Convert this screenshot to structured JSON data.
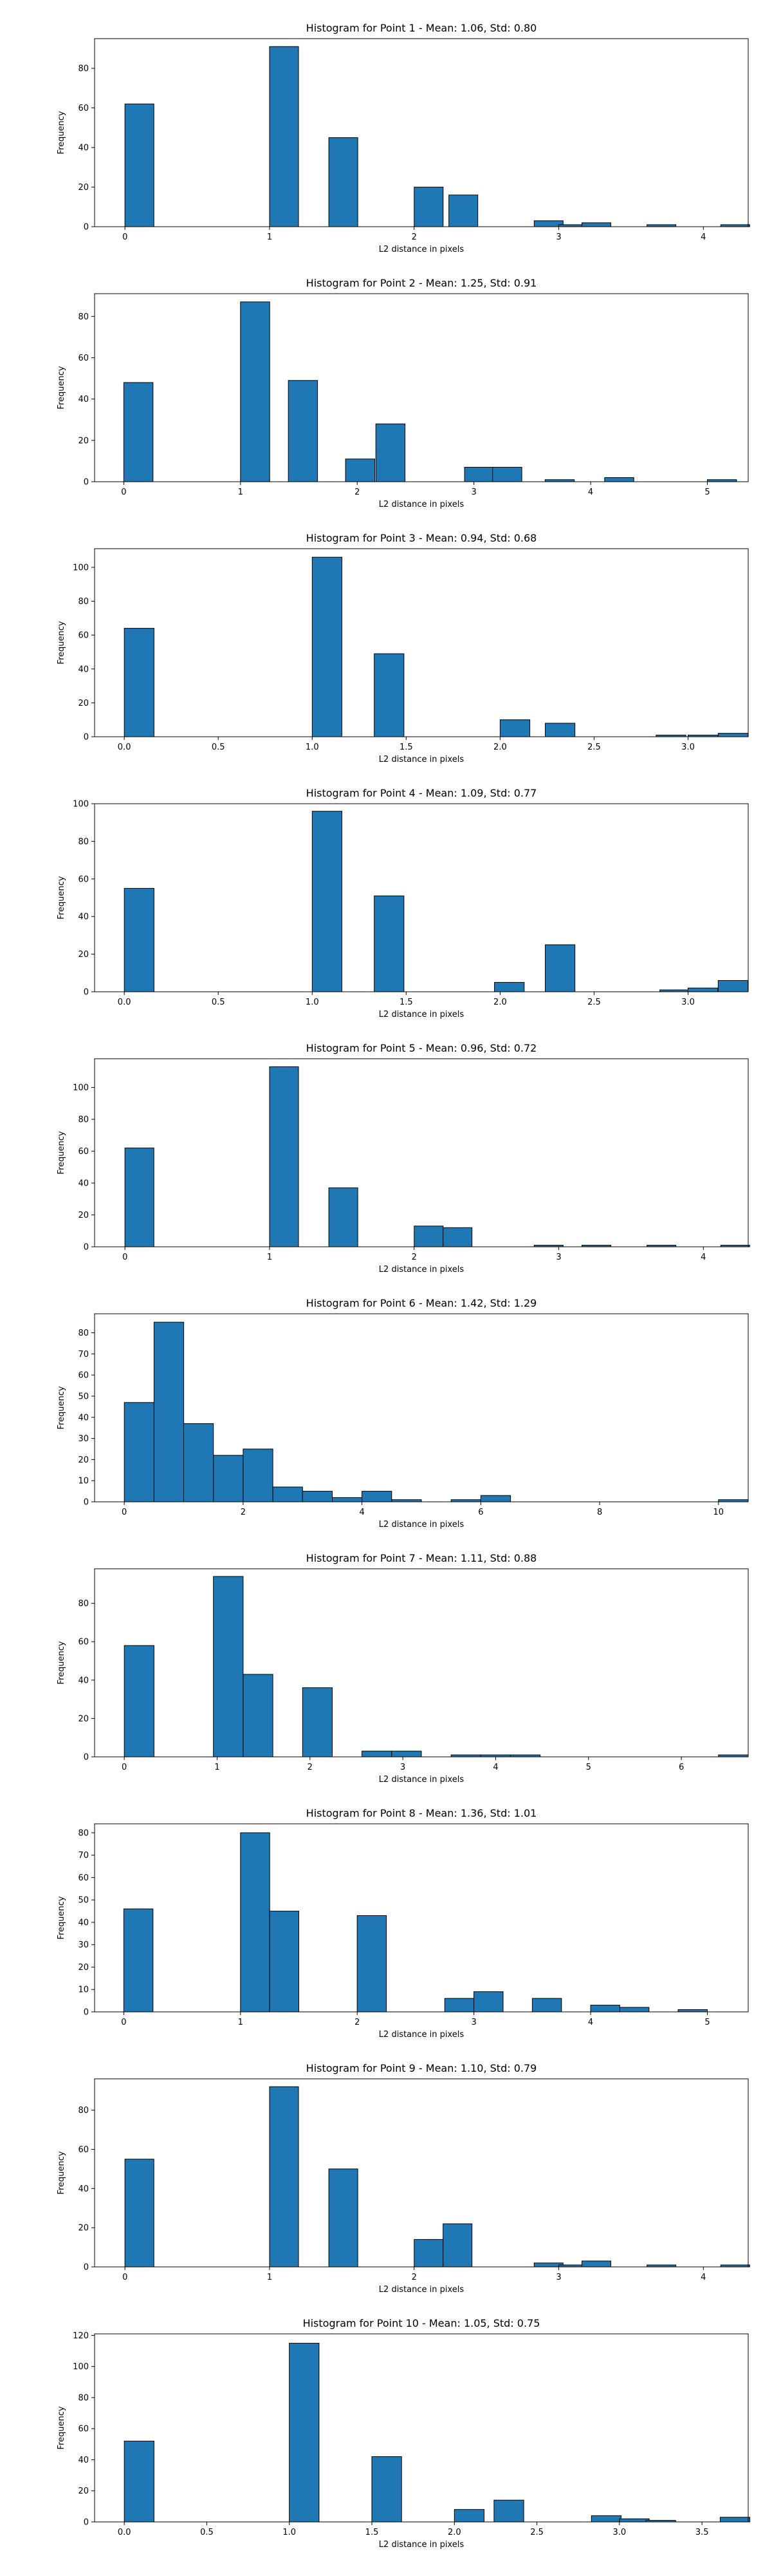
{
  "chart_data": [
    {
      "type": "bar",
      "title": "Histogram for Point 1 - Mean: 1.06, Std: 0.80",
      "xlabel": "L2 distance in pixels",
      "ylabel": "Frequency",
      "xlim": [
        -0.21,
        4.31
      ],
      "ylim": [
        0,
        95
      ],
      "xticks": [
        0,
        1,
        2,
        3,
        4
      ],
      "yticks": [
        0,
        20,
        40,
        60,
        80
      ],
      "bin_width": 0.2,
      "bars": [
        {
          "x": 0.0,
          "value": 62
        },
        {
          "x": 1.0,
          "value": 91
        },
        {
          "x": 1.41,
          "value": 45
        },
        {
          "x": 2.0,
          "value": 20
        },
        {
          "x": 2.24,
          "value": 16
        },
        {
          "x": 2.83,
          "value": 3
        },
        {
          "x": 3.0,
          "value": 1
        },
        {
          "x": 3.16,
          "value": 2
        },
        {
          "x": 3.61,
          "value": 1
        },
        {
          "x": 4.12,
          "value": 1
        }
      ]
    },
    {
      "type": "bar",
      "title": "Histogram for Point 2 - Mean: 1.25, Std: 0.91",
      "xlabel": "L2 distance in pixels",
      "ylabel": "Frequency",
      "xlim": [
        -0.25,
        5.35
      ],
      "ylim": [
        0,
        91
      ],
      "xticks": [
        0,
        1,
        2,
        3,
        4,
        5
      ],
      "yticks": [
        0,
        20,
        40,
        60,
        80
      ],
      "bin_width": 0.25,
      "bars": [
        {
          "x": 0.0,
          "value": 48
        },
        {
          "x": 1.0,
          "value": 87
        },
        {
          "x": 1.41,
          "value": 49
        },
        {
          "x": 1.9,
          "value": 11
        },
        {
          "x": 2.16,
          "value": 28
        },
        {
          "x": 2.92,
          "value": 7
        },
        {
          "x": 3.16,
          "value": 7
        },
        {
          "x": 3.61,
          "value": 1
        },
        {
          "x": 4.12,
          "value": 2
        },
        {
          "x": 5.0,
          "value": 1
        }
      ]
    },
    {
      "type": "bar",
      "title": "Histogram for Point 3 - Mean: 0.94, Std: 0.68",
      "xlabel": "L2 distance in pixels",
      "ylabel": "Frequency",
      "xlim": [
        -0.158,
        3.32
      ],
      "ylim": [
        0,
        111
      ],
      "xticks": [
        0.0,
        0.5,
        1.0,
        1.5,
        2.0,
        2.5,
        3.0
      ],
      "yticks": [
        0,
        20,
        40,
        60,
        80,
        100
      ],
      "tick_format": "0.0",
      "bin_width": 0.158,
      "bars": [
        {
          "x": 0.0,
          "value": 64
        },
        {
          "x": 1.0,
          "value": 106
        },
        {
          "x": 1.33,
          "value": 49
        },
        {
          "x": 2.0,
          "value": 10
        },
        {
          "x": 2.24,
          "value": 8
        },
        {
          "x": 2.83,
          "value": 1
        },
        {
          "x": 3.0,
          "value": 1
        },
        {
          "x": 3.16,
          "value": 2
        }
      ]
    },
    {
      "type": "bar",
      "title": "Histogram for Point 4 - Mean: 1.09, Std: 0.77",
      "xlabel": "L2 distance in pixels",
      "ylabel": "Frequency",
      "xlim": [
        -0.158,
        3.32
      ],
      "ylim": [
        0,
        100
      ],
      "xticks": [
        0.0,
        0.5,
        1.0,
        1.5,
        2.0,
        2.5,
        3.0
      ],
      "yticks": [
        0,
        20,
        40,
        60,
        80,
        100
      ],
      "tick_format": "0.0",
      "bin_width": 0.158,
      "bars": [
        {
          "x": 0.0,
          "value": 55
        },
        {
          "x": 1.0,
          "value": 96
        },
        {
          "x": 1.33,
          "value": 51
        },
        {
          "x": 1.97,
          "value": 5
        },
        {
          "x": 2.24,
          "value": 25
        },
        {
          "x": 2.85,
          "value": 1
        },
        {
          "x": 3.0,
          "value": 2
        },
        {
          "x": 3.16,
          "value": 6
        }
      ]
    },
    {
      "type": "bar",
      "title": "Histogram for Point 5 - Mean: 0.96, Std: 0.72",
      "xlabel": "L2 distance in pixels",
      "ylabel": "Frequency",
      "xlim": [
        -0.21,
        4.31
      ],
      "ylim": [
        0,
        118
      ],
      "xticks": [
        0,
        1,
        2,
        3,
        4
      ],
      "yticks": [
        0,
        20,
        40,
        60,
        80,
        100
      ],
      "bin_width": 0.2,
      "bars": [
        {
          "x": 0.0,
          "value": 62
        },
        {
          "x": 1.0,
          "value": 113
        },
        {
          "x": 1.41,
          "value": 37
        },
        {
          "x": 2.0,
          "value": 13
        },
        {
          "x": 2.2,
          "value": 12
        },
        {
          "x": 2.83,
          "value": 1
        },
        {
          "x": 3.16,
          "value": 1
        },
        {
          "x": 3.61,
          "value": 1
        },
        {
          "x": 4.12,
          "value": 1
        }
      ]
    },
    {
      "type": "bar",
      "title": "Histogram for Point 6 - Mean: 1.42, Std: 1.29",
      "xlabel": "L2 distance in pixels",
      "ylabel": "Frequency",
      "xlim": [
        -0.5,
        10.5
      ],
      "ylim": [
        0,
        89
      ],
      "xticks": [
        0,
        2,
        4,
        6,
        8,
        10
      ],
      "yticks": [
        0,
        10,
        20,
        30,
        40,
        50,
        60,
        70,
        80
      ],
      "bin_width": 0.5,
      "bars": [
        {
          "x": 0.0,
          "value": 47
        },
        {
          "x": 0.5,
          "value": 85
        },
        {
          "x": 1.0,
          "value": 37
        },
        {
          "x": 1.5,
          "value": 22
        },
        {
          "x": 2.0,
          "value": 25
        },
        {
          "x": 2.5,
          "value": 7
        },
        {
          "x": 3.0,
          "value": 5
        },
        {
          "x": 3.5,
          "value": 2
        },
        {
          "x": 4.0,
          "value": 5
        },
        {
          "x": 4.5,
          "value": 1
        },
        {
          "x": 5.5,
          "value": 1
        },
        {
          "x": 6.0,
          "value": 3
        },
        {
          "x": 10.0,
          "value": 1
        }
      ]
    },
    {
      "type": "bar",
      "title": "Histogram for Point 7 - Mean: 1.11, Std: 0.88",
      "xlabel": "L2 distance in pixels",
      "ylabel": "Frequency",
      "xlim": [
        -0.32,
        6.72
      ],
      "ylim": [
        0,
        98
      ],
      "xticks": [
        0,
        1,
        2,
        3,
        4,
        5,
        6
      ],
      "yticks": [
        0,
        20,
        40,
        60,
        80
      ],
      "bin_width": 0.32,
      "bars": [
        {
          "x": 0.0,
          "value": 58
        },
        {
          "x": 0.96,
          "value": 94
        },
        {
          "x": 1.28,
          "value": 43
        },
        {
          "x": 1.92,
          "value": 36
        },
        {
          "x": 2.56,
          "value": 3
        },
        {
          "x": 2.88,
          "value": 3
        },
        {
          "x": 3.52,
          "value": 1
        },
        {
          "x": 3.84,
          "value": 1
        },
        {
          "x": 4.16,
          "value": 1
        },
        {
          "x": 6.4,
          "value": 1
        }
      ]
    },
    {
      "type": "bar",
      "title": "Histogram for Point 8 - Mean: 1.36, Std: 1.01",
      "xlabel": "L2 distance in pixels",
      "ylabel": "Frequency",
      "xlim": [
        -0.25,
        5.35
      ],
      "ylim": [
        0,
        84
      ],
      "xticks": [
        0,
        1,
        2,
        3,
        4,
        5
      ],
      "yticks": [
        0,
        10,
        20,
        30,
        40,
        50,
        60,
        70,
        80
      ],
      "bin_width": 0.25,
      "bars": [
        {
          "x": 0.0,
          "value": 46
        },
        {
          "x": 1.0,
          "value": 80
        },
        {
          "x": 1.25,
          "value": 45
        },
        {
          "x": 2.0,
          "value": 43
        },
        {
          "x": 2.75,
          "value": 6
        },
        {
          "x": 3.0,
          "value": 9
        },
        {
          "x": 3.5,
          "value": 6
        },
        {
          "x": 4.0,
          "value": 3
        },
        {
          "x": 4.25,
          "value": 2
        },
        {
          "x": 4.75,
          "value": 1
        }
      ]
    },
    {
      "type": "bar",
      "title": "Histogram for Point 9 - Mean: 1.10, Std: 0.79",
      "xlabel": "L2 distance in pixels",
      "ylabel": "Frequency",
      "xlim": [
        -0.21,
        4.31
      ],
      "ylim": [
        0,
        96
      ],
      "xticks": [
        0,
        1,
        2,
        3,
        4
      ],
      "yticks": [
        0,
        20,
        40,
        60,
        80
      ],
      "bin_width": 0.2,
      "bars": [
        {
          "x": 0.0,
          "value": 55
        },
        {
          "x": 1.0,
          "value": 92
        },
        {
          "x": 1.41,
          "value": 50
        },
        {
          "x": 2.0,
          "value": 14
        },
        {
          "x": 2.2,
          "value": 22
        },
        {
          "x": 2.83,
          "value": 2
        },
        {
          "x": 3.0,
          "value": 1
        },
        {
          "x": 3.16,
          "value": 3
        },
        {
          "x": 3.61,
          "value": 1
        },
        {
          "x": 4.12,
          "value": 1
        }
      ]
    },
    {
      "type": "bar",
      "title": "Histogram for Point 10 - Mean: 1.05, Std: 0.75",
      "xlabel": "L2 distance in pixels",
      "ylabel": "Frequency",
      "xlim": [
        -0.18,
        3.78
      ],
      "ylim": [
        0,
        121
      ],
      "xticks": [
        0.0,
        0.5,
        1.0,
        1.5,
        2.0,
        2.5,
        3.0,
        3.5
      ],
      "yticks": [
        0,
        20,
        40,
        60,
        80,
        100,
        120
      ],
      "tick_format": "0.0",
      "bin_width": 0.18,
      "bars": [
        {
          "x": 0.0,
          "value": 52
        },
        {
          "x": 1.0,
          "value": 115
        },
        {
          "x": 1.5,
          "value": 42
        },
        {
          "x": 2.0,
          "value": 8
        },
        {
          "x": 2.24,
          "value": 14
        },
        {
          "x": 2.83,
          "value": 4
        },
        {
          "x": 3.0,
          "value": 2
        },
        {
          "x": 3.16,
          "value": 1
        },
        {
          "x": 3.61,
          "value": 3
        }
      ]
    }
  ]
}
